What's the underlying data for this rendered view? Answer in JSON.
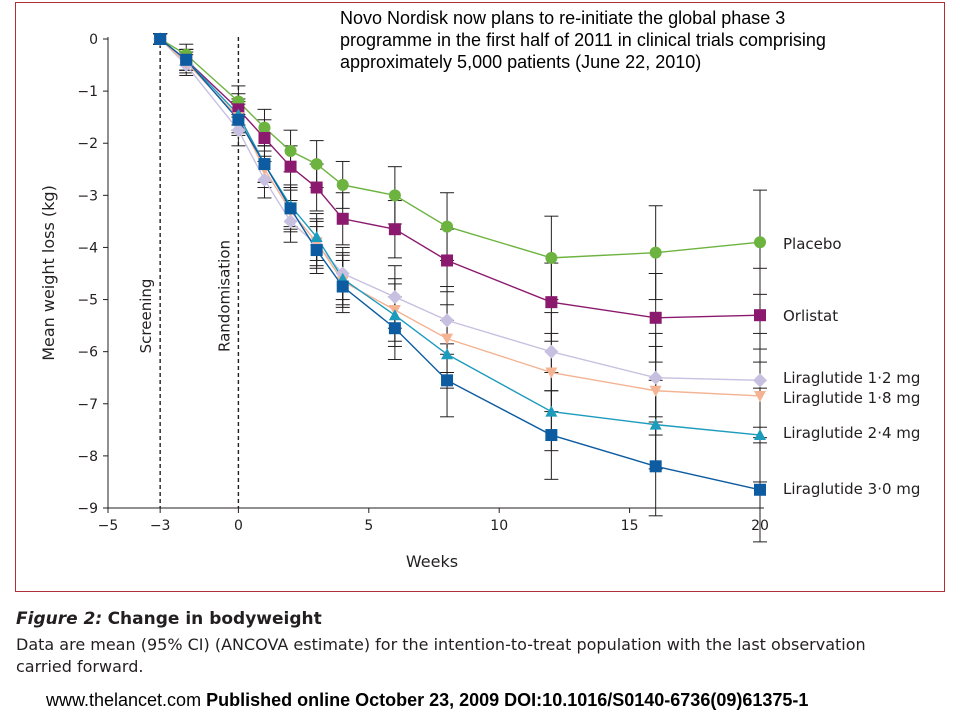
{
  "note": "Novo Nordisk now plans to re-initiate the global phase 3\nprogramme in the first half of 2011 in clinical trials comprising\napproximately 5,000 patients    (June 22, 2010)",
  "caption": {
    "label": "Figure 2:",
    "title": "Change in bodyweight",
    "text": "Data are mean (95% CI) (ANCOVA estimate) for the intention-to-treat population with the last observation carried forward."
  },
  "source": {
    "url": "www.thelancet.com",
    "published": "Published online October 23, 2009 DOI:10.1016/S0140-6736(09)61375-1"
  },
  "chart_data": {
    "type": "line",
    "title": "",
    "xlabel": "Weeks",
    "ylabel": "Mean weight loss (kg)",
    "xlim": [
      -5,
      20
    ],
    "ylim": [
      -9,
      0
    ],
    "xticks": [
      -5,
      -3,
      0,
      5,
      10,
      15,
      20
    ],
    "xtick_labels": [
      "−5",
      "−3",
      "0",
      "5",
      "10",
      "15",
      "20"
    ],
    "yticks": [
      0,
      -1,
      -2,
      -3,
      -4,
      -5,
      -6,
      -7,
      -8,
      -9
    ],
    "ytick_labels": [
      "0",
      "−1",
      "−2",
      "−3",
      "−4",
      "−5",
      "−6",
      "−7",
      "−8",
      "−9"
    ],
    "grid": false,
    "legend": "direct labels at right end of each line",
    "vlines": [
      {
        "x": -3,
        "label": "Screening"
      },
      {
        "x": 0,
        "label": "Randomisation"
      }
    ],
    "x": [
      -3,
      -2,
      0,
      1,
      2,
      3,
      4,
      6,
      8,
      12,
      16,
      20
    ],
    "series": [
      {
        "name": "Placebo",
        "color": "#6db33f",
        "marker": "circle",
        "values": [
          0,
          -0.3,
          -1.2,
          -1.7,
          -2.15,
          -2.4,
          -2.8,
          -3.0,
          -3.6,
          -4.2,
          -4.1,
          -3.9
        ],
        "ci": [
          0.1,
          0.2,
          0.3,
          0.35,
          0.4,
          0.45,
          0.45,
          0.55,
          0.65,
          0.8,
          0.9,
          1.0
        ]
      },
      {
        "name": "Orlistat",
        "color": "#8b1a6e",
        "marker": "square",
        "values": [
          0,
          -0.4,
          -1.35,
          -1.9,
          -2.45,
          -2.85,
          -3.45,
          -3.65,
          -4.25,
          -5.05,
          -5.35,
          -5.3
        ],
        "ci": [
          0.1,
          0.2,
          0.3,
          0.35,
          0.4,
          0.45,
          0.5,
          0.55,
          0.6,
          0.75,
          0.85,
          0.9
        ]
      },
      {
        "name": "Liraglutide 1·2 mg",
        "color": "#c8c0e0",
        "marker": "diamond",
        "values": [
          0,
          -0.5,
          -1.75,
          -2.7,
          -3.5,
          -3.95,
          -4.5,
          -4.95,
          -5.4,
          -6.0,
          -6.5,
          -6.55
        ],
        "ci": [
          0.1,
          0.2,
          0.3,
          0.35,
          0.4,
          0.45,
          0.5,
          0.6,
          0.65,
          0.75,
          0.85,
          0.9
        ]
      },
      {
        "name": "Liraglutide 1·8 mg",
        "color": "#f4b393",
        "marker": "triangle-down",
        "values": [
          0,
          -0.45,
          -1.5,
          -2.5,
          -3.3,
          -3.9,
          -4.65,
          -5.2,
          -5.75,
          -6.4,
          -6.75,
          -6.85
        ],
        "ci": [
          0.1,
          0.2,
          0.3,
          0.35,
          0.4,
          0.45,
          0.5,
          0.6,
          0.65,
          0.75,
          0.85,
          0.9
        ]
      },
      {
        "name": "Liraglutide 2·4 mg",
        "color": "#1d9bbd",
        "marker": "triangle-up",
        "values": [
          0,
          -0.4,
          -1.45,
          -2.4,
          -3.2,
          -3.8,
          -4.6,
          -5.3,
          -6.05,
          -7.15,
          -7.4,
          -7.6
        ],
        "ci": [
          0.1,
          0.2,
          0.3,
          0.35,
          0.4,
          0.45,
          0.5,
          0.6,
          0.65,
          0.75,
          0.85,
          0.9
        ]
      },
      {
        "name": "Liraglutide 3·0 mg",
        "color": "#0d5ca1",
        "marker": "square",
        "values": [
          0,
          -0.4,
          -1.55,
          -2.4,
          -3.25,
          -4.05,
          -4.75,
          -5.55,
          -6.55,
          -7.6,
          -8.2,
          -8.65
        ],
        "ci": [
          0.1,
          0.2,
          0.3,
          0.35,
          0.4,
          0.45,
          0.5,
          0.6,
          0.7,
          0.85,
          0.95,
          1.0
        ]
      }
    ]
  }
}
